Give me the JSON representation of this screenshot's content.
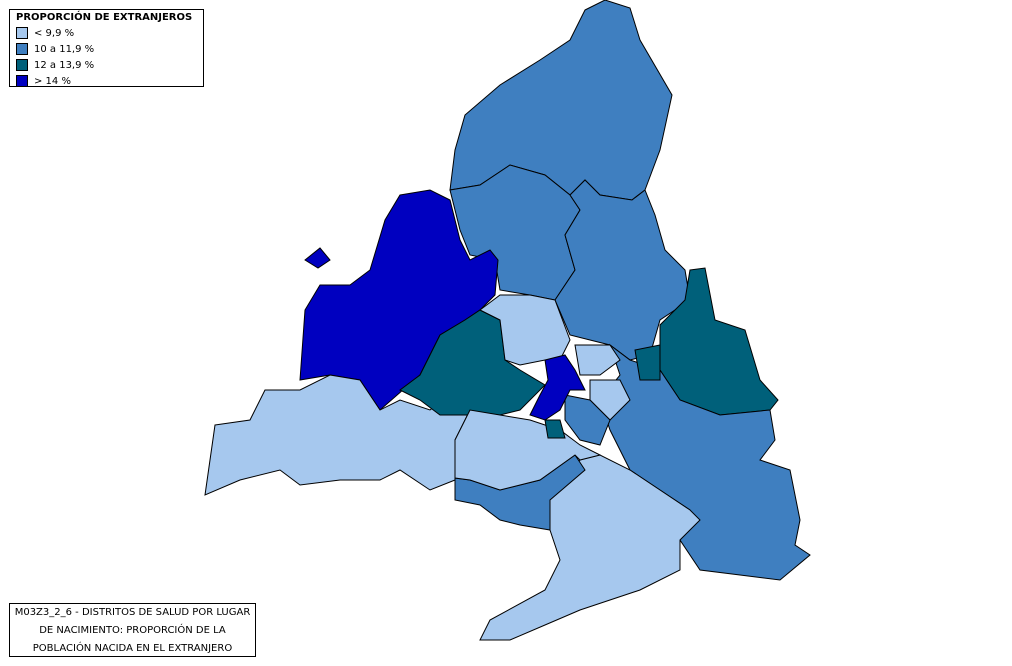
{
  "legend": {
    "title": "PROPORCIÓN DE EXTRANJEROS",
    "items": [
      {
        "label": "< 9,9 %",
        "color": "#a6c8ee"
      },
      {
        "label": "10 a 11,9 %",
        "color": "#3f7fc0"
      },
      {
        "label": "12 a 13,9 %",
        "color": "#00607a"
      },
      {
        "label": "> 14 %",
        "color": "#0000c0"
      }
    ]
  },
  "caption": {
    "lines": [
      "M03Z3_2_6 - DISTRITOS DE SALUD POR LUGAR",
      "DE NACIMIENTO: PROPORCIÓN DE LA",
      "POBLACIÓN NACIDA EN EL EXTRANJERO"
    ]
  }
}
